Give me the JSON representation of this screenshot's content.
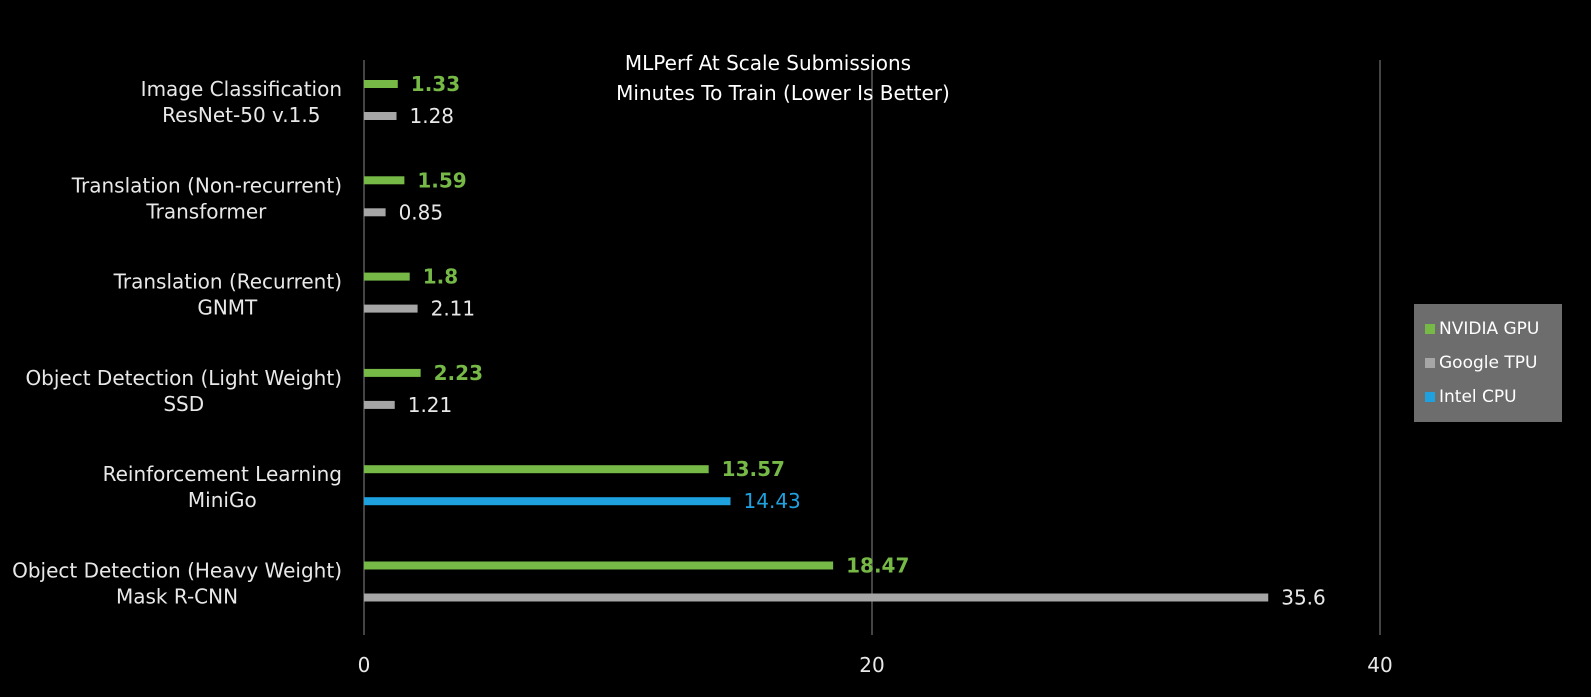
{
  "chart_data": {
    "type": "bar",
    "orientation": "horizontal",
    "title": [
      "MLPerf At Scale Submissions",
      "Minutes To Train (Lower Is Better)"
    ],
    "categories": [
      [
        "Image Classification",
        "ResNet-50 v.1.5"
      ],
      [
        "Translation (Non-recurrent)",
        "Transformer"
      ],
      [
        "Translation (Recurrent)",
        "GNMT"
      ],
      [
        "Object Detection (Light Weight)",
        "SSD"
      ],
      [
        "Reinforcement Learning",
        "MiniGo"
      ],
      [
        "Object Detection (Heavy Weight)",
        "Mask R-CNN"
      ]
    ],
    "series": [
      {
        "name": "NVIDIA GPU",
        "color": "#76b947",
        "values": [
          1.33,
          1.59,
          1.8,
          2.23,
          13.57,
          18.47
        ],
        "labels": [
          "1.33",
          "1.59",
          "1.8",
          "2.23",
          "13.57",
          "18.47"
        ]
      },
      {
        "name": "Google TPU",
        "color": "#a6a6a6",
        "values": [
          1.28,
          0.85,
          2.11,
          1.21,
          null,
          35.6
        ],
        "labels": [
          "1.28",
          "0.85",
          "2.11",
          "1.21",
          null,
          "35.6"
        ]
      },
      {
        "name": "Intel CPU",
        "color": "#1fa1e0",
        "values": [
          null,
          null,
          null,
          null,
          14.43,
          null
        ],
        "labels": [
          null,
          null,
          null,
          null,
          "14.43",
          null
        ]
      }
    ],
    "xlim": [
      0,
      40
    ],
    "xticks": [
      0,
      20,
      40
    ],
    "xtick_labels": [
      "0",
      "20",
      "40"
    ],
    "grid": "vertical",
    "legend": "right"
  }
}
